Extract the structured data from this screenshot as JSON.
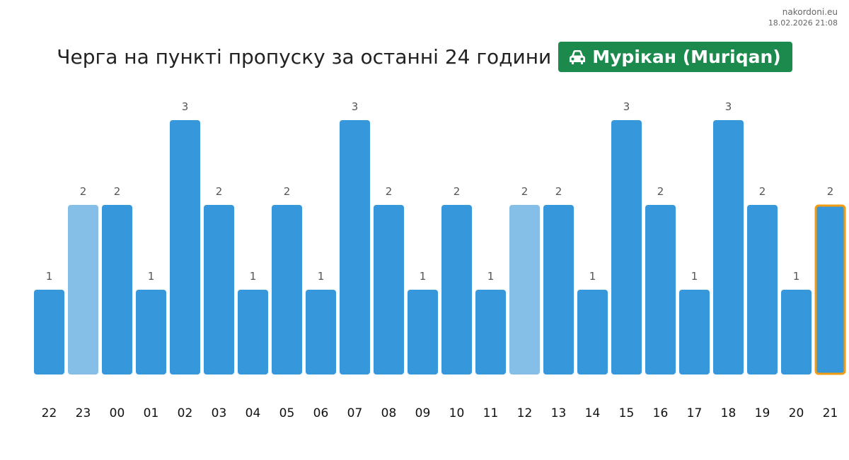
{
  "header": {
    "site": "nakordoni.eu",
    "timestamp": "18.02.2026 21:08",
    "title": "Черга на пункті пропуску за останні 24 години",
    "badge_label": "Мурікан (Muriqan)",
    "badge_icon": "car-icon",
    "badge_color": "#1b8a4c"
  },
  "colors": {
    "bar": "#3797db",
    "bar_light": "#85bfe8",
    "highlight_border": "#f39c12"
  },
  "chart_data": {
    "type": "bar",
    "categories": [
      "22",
      "23",
      "00",
      "01",
      "02",
      "03",
      "04",
      "05",
      "06",
      "07",
      "08",
      "09",
      "10",
      "11",
      "12",
      "13",
      "14",
      "15",
      "16",
      "17",
      "18",
      "19",
      "20",
      "21"
    ],
    "values": [
      1,
      2,
      2,
      1,
      3,
      2,
      1,
      2,
      1,
      3,
      2,
      1,
      2,
      1,
      2,
      2,
      1,
      3,
      2,
      1,
      3,
      2,
      1,
      2
    ],
    "light_bars": [
      "23",
      "12"
    ],
    "highlighted": "21",
    "ylim": [
      0,
      3
    ]
  }
}
